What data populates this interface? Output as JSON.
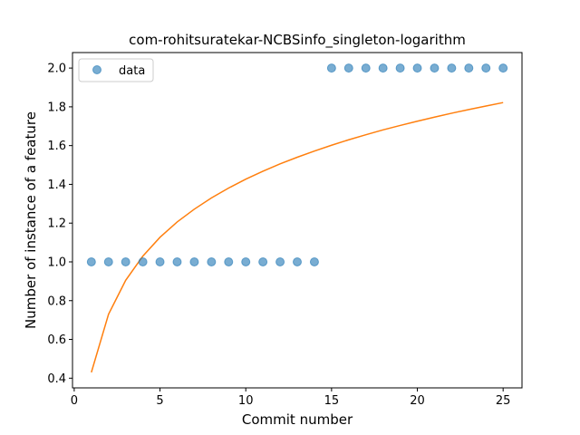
{
  "chart_data": {
    "type": "scatter",
    "title": "com-rohitsuratekar-NCBSinfo_singleton-logarithm",
    "xlabel": "Commit number",
    "ylabel": "Number of instance of a feature",
    "xlim": [
      -0.1,
      26.1
    ],
    "ylim": [
      0.35,
      2.08
    ],
    "xticks": [
      0,
      5,
      10,
      15,
      20,
      25
    ],
    "xtick_labels": [
      "0",
      "5",
      "10",
      "15",
      "20",
      "25"
    ],
    "yticks": [
      0.4,
      0.6,
      0.8,
      1.0,
      1.2,
      1.4,
      1.6,
      1.8,
      2.0
    ],
    "ytick_labels": [
      "0.4",
      "0.6",
      "0.8",
      "1.0",
      "1.2",
      "1.4",
      "1.6",
      "1.8",
      "2.0"
    ],
    "grid": false,
    "legend": {
      "position": "top-left",
      "entries": [
        "data"
      ]
    },
    "series": [
      {
        "name": "data",
        "kind": "scatter",
        "color": "#1f77b4",
        "x": [
          1,
          2,
          3,
          4,
          5,
          6,
          7,
          8,
          9,
          10,
          11,
          12,
          13,
          14,
          15,
          16,
          17,
          18,
          19,
          20,
          21,
          22,
          23,
          24,
          25
        ],
        "y": [
          1,
          1,
          1,
          1,
          1,
          1,
          1,
          1,
          1,
          1,
          1,
          1,
          1,
          1,
          2,
          2,
          2,
          2,
          2,
          2,
          2,
          2,
          2,
          2,
          2
        ]
      },
      {
        "kind": "line",
        "color": "#ff7f0e",
        "x": [
          1,
          2,
          3,
          4,
          5,
          6,
          7,
          8,
          9,
          10,
          11,
          12,
          13,
          14,
          15,
          16,
          17,
          18,
          19,
          20,
          21,
          22,
          23,
          24,
          25
        ],
        "y": [
          0.43,
          0.73,
          0.905,
          1.03,
          1.127,
          1.206,
          1.272,
          1.33,
          1.381,
          1.427,
          1.468,
          1.506,
          1.54,
          1.572,
          1.602,
          1.63,
          1.656,
          1.681,
          1.704,
          1.726,
          1.747,
          1.767,
          1.786,
          1.804,
          1.822
        ]
      }
    ]
  }
}
